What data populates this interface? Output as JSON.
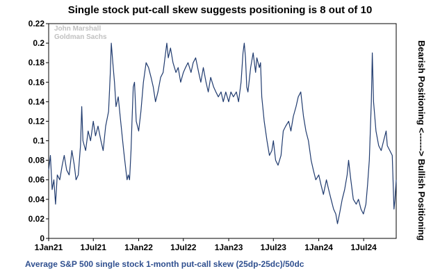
{
  "chart_data": {
    "type": "line",
    "title": "Single stock put-call skew suggests positioning is 8 out of 10",
    "xlabel": "Average S&P 500 single stock 1-month put-call skew (25dp-25dc)/50dc",
    "ylabel_right": "Bearish Positioning <------> Bullish Positioning",
    "credits": [
      "John Marshall",
      "Goldman Sachs"
    ],
    "ylim": [
      0,
      0.22
    ],
    "yticks": [
      "0",
      "0.02",
      "0.04",
      "0.06",
      "0.08",
      "0.1",
      "0.12",
      "0.14",
      "0.16",
      "0.18",
      "0.2",
      "0.22"
    ],
    "xlim": [
      "2021-01-01",
      "2024-11-10"
    ],
    "xticks": [
      {
        "label": "1Jan21",
        "date": "2021-01-01"
      },
      {
        "label": "1Jul21",
        "date": "2021-07-01"
      },
      {
        "label": "1Jan22",
        "date": "2022-01-01"
      },
      {
        "label": "1Jul22",
        "date": "2022-07-01"
      },
      {
        "label": "1Jan23",
        "date": "2023-01-01"
      },
      {
        "label": "1Jul23",
        "date": "2023-07-01"
      },
      {
        "label": "1Jan24",
        "date": "2024-01-01"
      },
      {
        "label": "1Jul24",
        "date": "2024-07-01"
      }
    ],
    "grid": false,
    "legend": "none",
    "series": [
      {
        "color": "#1f3a6e",
        "points": [
          [
            "2021-01-01",
            0.07
          ],
          [
            "2021-01-08",
            0.085
          ],
          [
            "2021-01-15",
            0.05
          ],
          [
            "2021-01-22",
            0.06
          ],
          [
            "2021-01-29",
            0.035
          ],
          [
            "2021-02-05",
            0.065
          ],
          [
            "2021-02-15",
            0.06
          ],
          [
            "2021-02-25",
            0.075
          ],
          [
            "2021-03-05",
            0.085
          ],
          [
            "2021-03-15",
            0.07
          ],
          [
            "2021-03-25",
            0.065
          ],
          [
            "2021-04-05",
            0.09
          ],
          [
            "2021-04-15",
            0.075
          ],
          [
            "2021-04-22",
            0.06
          ],
          [
            "2021-05-01",
            0.065
          ],
          [
            "2021-05-10",
            0.095
          ],
          [
            "2021-05-15",
            0.135
          ],
          [
            "2021-05-20",
            0.1
          ],
          [
            "2021-05-31",
            0.09
          ],
          [
            "2021-06-10",
            0.11
          ],
          [
            "2021-06-20",
            0.1
          ],
          [
            "2021-07-01",
            0.12
          ],
          [
            "2021-07-10",
            0.105
          ],
          [
            "2021-07-20",
            0.115
          ],
          [
            "2021-08-01",
            0.1
          ],
          [
            "2021-08-10",
            0.09
          ],
          [
            "2021-08-20",
            0.115
          ],
          [
            "2021-09-01",
            0.13
          ],
          [
            "2021-09-08",
            0.17
          ],
          [
            "2021-09-12",
            0.2
          ],
          [
            "2021-09-18",
            0.18
          ],
          [
            "2021-09-25",
            0.16
          ],
          [
            "2021-10-01",
            0.135
          ],
          [
            "2021-10-10",
            0.145
          ],
          [
            "2021-10-20",
            0.12
          ],
          [
            "2021-11-01",
            0.09
          ],
          [
            "2021-11-10",
            0.07
          ],
          [
            "2021-11-15",
            0.06
          ],
          [
            "2021-11-20",
            0.065
          ],
          [
            "2021-11-25",
            0.06
          ],
          [
            "2021-12-01",
            0.09
          ],
          [
            "2021-12-05",
            0.12
          ],
          [
            "2021-12-10",
            0.155
          ],
          [
            "2021-12-15",
            0.16
          ],
          [
            "2021-12-22",
            0.12
          ],
          [
            "2022-01-01",
            0.11
          ],
          [
            "2022-01-10",
            0.13
          ],
          [
            "2022-01-20",
            0.16
          ],
          [
            "2022-01-31",
            0.18
          ],
          [
            "2022-02-10",
            0.175
          ],
          [
            "2022-02-20",
            0.165
          ],
          [
            "2022-03-01",
            0.155
          ],
          [
            "2022-03-10",
            0.14
          ],
          [
            "2022-03-20",
            0.15
          ],
          [
            "2022-03-31",
            0.165
          ],
          [
            "2022-04-10",
            0.17
          ],
          [
            "2022-04-20",
            0.19
          ],
          [
            "2022-04-25",
            0.2
          ],
          [
            "2022-05-01",
            0.185
          ],
          [
            "2022-05-10",
            0.195
          ],
          [
            "2022-05-20",
            0.18
          ],
          [
            "2022-06-01",
            0.17
          ],
          [
            "2022-06-10",
            0.175
          ],
          [
            "2022-06-20",
            0.16
          ],
          [
            "2022-07-01",
            0.17
          ],
          [
            "2022-07-10",
            0.175
          ],
          [
            "2022-07-20",
            0.18
          ],
          [
            "2022-08-01",
            0.17
          ],
          [
            "2022-08-10",
            0.18
          ],
          [
            "2022-08-20",
            0.185
          ],
          [
            "2022-09-01",
            0.17
          ],
          [
            "2022-09-10",
            0.16
          ],
          [
            "2022-09-20",
            0.175
          ],
          [
            "2022-10-01",
            0.16
          ],
          [
            "2022-10-10",
            0.15
          ],
          [
            "2022-10-20",
            0.165
          ],
          [
            "2022-11-01",
            0.155
          ],
          [
            "2022-11-10",
            0.15
          ],
          [
            "2022-11-20",
            0.145
          ],
          [
            "2022-12-01",
            0.15
          ],
          [
            "2022-12-10",
            0.14
          ],
          [
            "2022-12-20",
            0.15
          ],
          [
            "2023-01-01",
            0.14
          ],
          [
            "2023-01-10",
            0.15
          ],
          [
            "2023-01-20",
            0.145
          ],
          [
            "2023-02-01",
            0.15
          ],
          [
            "2023-02-10",
            0.14
          ],
          [
            "2023-02-20",
            0.16
          ],
          [
            "2023-02-28",
            0.19
          ],
          [
            "2023-03-05",
            0.2
          ],
          [
            "2023-03-10",
            0.185
          ],
          [
            "2023-03-15",
            0.155
          ],
          [
            "2023-03-20",
            0.15
          ],
          [
            "2023-03-31",
            0.175
          ],
          [
            "2023-04-10",
            0.19
          ],
          [
            "2023-04-20",
            0.17
          ],
          [
            "2023-04-25",
            0.185
          ],
          [
            "2023-05-05",
            0.175
          ],
          [
            "2023-05-10",
            0.18
          ],
          [
            "2023-05-15",
            0.145
          ],
          [
            "2023-05-25",
            0.12
          ],
          [
            "2023-06-05",
            0.1
          ],
          [
            "2023-06-15",
            0.085
          ],
          [
            "2023-06-25",
            0.09
          ],
          [
            "2023-07-01",
            0.1
          ],
          [
            "2023-07-10",
            0.08
          ],
          [
            "2023-07-20",
            0.075
          ],
          [
            "2023-08-01",
            0.085
          ],
          [
            "2023-08-10",
            0.11
          ],
          [
            "2023-08-20",
            0.115
          ],
          [
            "2023-09-01",
            0.12
          ],
          [
            "2023-09-10",
            0.11
          ],
          [
            "2023-09-20",
            0.125
          ],
          [
            "2023-10-01",
            0.135
          ],
          [
            "2023-10-10",
            0.145
          ],
          [
            "2023-10-20",
            0.15
          ],
          [
            "2023-10-31",
            0.125
          ],
          [
            "2023-11-10",
            0.11
          ],
          [
            "2023-11-20",
            0.1
          ],
          [
            "2023-12-01",
            0.08
          ],
          [
            "2023-12-10",
            0.07
          ],
          [
            "2023-12-20",
            0.06
          ],
          [
            "2024-01-01",
            0.065
          ],
          [
            "2024-01-10",
            0.055
          ],
          [
            "2024-01-20",
            0.045
          ],
          [
            "2024-02-01",
            0.06
          ],
          [
            "2024-02-10",
            0.05
          ],
          [
            "2024-02-20",
            0.04
          ],
          [
            "2024-03-01",
            0.03
          ],
          [
            "2024-03-10",
            0.025
          ],
          [
            "2024-03-17",
            0.015
          ],
          [
            "2024-03-25",
            0.025
          ],
          [
            "2024-04-05",
            0.04
          ],
          [
            "2024-04-15",
            0.05
          ],
          [
            "2024-04-25",
            0.065
          ],
          [
            "2024-05-01",
            0.08
          ],
          [
            "2024-05-10",
            0.06
          ],
          [
            "2024-05-20",
            0.04
          ],
          [
            "2024-06-01",
            0.035
          ],
          [
            "2024-06-10",
            0.04
          ],
          [
            "2024-06-20",
            0.03
          ],
          [
            "2024-06-30",
            0.025
          ],
          [
            "2024-07-10",
            0.035
          ],
          [
            "2024-07-17",
            0.055
          ],
          [
            "2024-07-24",
            0.08
          ],
          [
            "2024-08-01",
            0.14
          ],
          [
            "2024-08-05",
            0.19
          ],
          [
            "2024-08-10",
            0.14
          ],
          [
            "2024-08-20",
            0.11
          ],
          [
            "2024-08-31",
            0.095
          ],
          [
            "2024-09-10",
            0.09
          ],
          [
            "2024-09-20",
            0.1
          ],
          [
            "2024-09-30",
            0.11
          ],
          [
            "2024-10-05",
            0.095
          ],
          [
            "2024-10-15",
            0.09
          ],
          [
            "2024-10-25",
            0.085
          ],
          [
            "2024-11-01",
            0.03
          ],
          [
            "2024-11-05",
            0.04
          ],
          [
            "2024-11-10",
            0.06
          ]
        ]
      }
    ]
  }
}
